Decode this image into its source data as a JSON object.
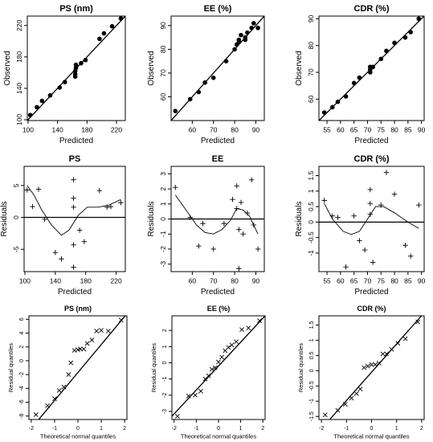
{
  "chart_data": [
    {
      "type": "scatter",
      "title": "PS (nm)",
      "xlabel": "Predicted",
      "ylabel": "Observed",
      "xlim": [
        99,
        232
      ],
      "ylim": [
        99,
        232
      ],
      "xticks": [
        100,
        140,
        180,
        220
      ],
      "yticks": [
        100,
        140,
        180,
        220
      ],
      "reference_line": "identity",
      "marker": "dot",
      "points": [
        [
          103,
          106
        ],
        [
          112,
          116
        ],
        [
          119,
          124
        ],
        [
          130,
          131
        ],
        [
          143,
          141
        ],
        [
          150,
          148
        ],
        [
          164,
          155
        ],
        [
          164,
          158
        ],
        [
          164,
          162
        ],
        [
          165,
          166
        ],
        [
          165,
          170
        ],
        [
          172,
          172
        ],
        [
          178,
          176
        ],
        [
          197,
          203
        ],
        [
          203,
          210
        ],
        [
          214,
          219
        ],
        [
          226,
          229
        ]
      ]
    },
    {
      "type": "scatter",
      "title": "EE (%)",
      "xlabel": "Predicted",
      "ylabel": "Observed",
      "xlim": [
        50,
        94
      ],
      "ylim": [
        50,
        94
      ],
      "xticks": [
        60,
        70,
        80,
        90
      ],
      "yticks": [
        60,
        70,
        80,
        90
      ],
      "reference_line": "identity",
      "marker": "dot",
      "points": [
        [
          52,
          54
        ],
        [
          59,
          59
        ],
        [
          63,
          62
        ],
        [
          66,
          66
        ],
        [
          70,
          68
        ],
        [
          76,
          75
        ],
        [
          80,
          80
        ],
        [
          81,
          82
        ],
        [
          82,
          84
        ],
        [
          82,
          83
        ],
        [
          83,
          86
        ],
        [
          85,
          84
        ],
        [
          85,
          85
        ],
        [
          86,
          87
        ],
        [
          88,
          89
        ],
        [
          89,
          91
        ],
        [
          91,
          89
        ]
      ]
    },
    {
      "type": "scatter",
      "title": "CDR (%)",
      "xlabel": "Predicted",
      "ylabel": "Observed",
      "xlim": [
        52,
        91
      ],
      "ylim": [
        52,
        91
      ],
      "xticks": [
        55,
        60,
        65,
        70,
        75,
        80,
        85,
        90
      ],
      "yticks": [
        60,
        70,
        80,
        90
      ],
      "reference_line": "identity",
      "marker": "dot",
      "points": [
        [
          54,
          55
        ],
        [
          57,
          57
        ],
        [
          59,
          59
        ],
        [
          62,
          61
        ],
        [
          65,
          66
        ],
        [
          67,
          68
        ],
        [
          71,
          70
        ],
        [
          71,
          72
        ],
        [
          71,
          71
        ],
        [
          71,
          72
        ],
        [
          72,
          72
        ],
        [
          75,
          75
        ],
        [
          77,
          78
        ],
        [
          80,
          81
        ],
        [
          84,
          83
        ],
        [
          86,
          85
        ],
        [
          89,
          90
        ]
      ]
    },
    {
      "type": "scatter",
      "title": "PS",
      "xlabel": "Predicted",
      "ylabel": "Residuals",
      "xlim": [
        99,
        232
      ],
      "ylim": [
        -8.5,
        8
      ],
      "xticks": [
        100,
        140,
        180,
        220
      ],
      "yticks": [
        -5,
        0,
        5
      ],
      "reference_line": "y=0",
      "marker": "plus",
      "points": [
        [
          103,
          4.3
        ],
        [
          110,
          1.7
        ],
        [
          118,
          4.4
        ],
        [
          126,
          -0.3
        ],
        [
          140,
          -5.5
        ],
        [
          148,
          -6.5
        ],
        [
          164,
          -7.8
        ],
        [
          164,
          -4.3
        ],
        [
          164,
          1.6
        ],
        [
          164,
          3
        ],
        [
          164,
          5.9
        ],
        [
          172,
          -2
        ],
        [
          178,
          -3.8
        ],
        [
          198,
          4.2
        ],
        [
          208,
          1.6
        ],
        [
          213,
          1.7
        ],
        [
          226,
          2.3
        ]
      ],
      "smooth": [
        [
          103,
          5
        ],
        [
          112,
          3.5
        ],
        [
          122,
          1.2
        ],
        [
          135,
          -1.2
        ],
        [
          148,
          -2.8
        ],
        [
          158,
          -2
        ],
        [
          170,
          0.3
        ],
        [
          182,
          1.6
        ],
        [
          196,
          1.6
        ],
        [
          210,
          1.9
        ],
        [
          226,
          2.8
        ]
      ]
    },
    {
      "type": "scatter",
      "title": "EE",
      "xlabel": "Predicted",
      "ylabel": "Residuals",
      "xlim": [
        50,
        94
      ],
      "ylim": [
        -3.5,
        3.5
      ],
      "xticks": [
        60,
        70,
        80,
        90
      ],
      "yticks": [
        -3,
        -2,
        -1,
        0,
        1,
        2,
        3
      ],
      "reference_line": "y=0",
      "marker": "plus",
      "points": [
        [
          52,
          2.1
        ],
        [
          59,
          0.1
        ],
        [
          63,
          -1.8
        ],
        [
          65,
          -0.3
        ],
        [
          70,
          -2
        ],
        [
          75,
          -0.3
        ],
        [
          79,
          1.3
        ],
        [
          81,
          0.7
        ],
        [
          81,
          2.2
        ],
        [
          82,
          -3.3
        ],
        [
          82,
          -0.7
        ],
        [
          83,
          1.1
        ],
        [
          84,
          -1
        ],
        [
          86,
          0.4
        ],
        [
          88,
          2.6
        ],
        [
          89,
          -0.4
        ],
        [
          91,
          -2
        ]
      ],
      "smooth": [
        [
          52,
          1.6
        ],
        [
          57,
          0.6
        ],
        [
          62,
          -0.4
        ],
        [
          66,
          -0.9
        ],
        [
          70,
          -1
        ],
        [
          74,
          -0.7
        ],
        [
          78,
          -0.1
        ],
        [
          81,
          0.7
        ],
        [
          84,
          0.6
        ],
        [
          87,
          0.2
        ],
        [
          91,
          -1
        ]
      ]
    },
    {
      "type": "scatter",
      "title": "CDR (%)",
      "xlabel": "Predicted",
      "ylabel": "Residuals",
      "xlim": [
        52,
        91
      ],
      "ylim": [
        -1.6,
        1.8
      ],
      "xticks": [
        55,
        60,
        65,
        70,
        75,
        80,
        85,
        90
      ],
      "yticks": [
        -1,
        -0.5,
        0,
        0.5,
        1,
        1.5
      ],
      "reference_line": "y=0",
      "marker": "plus",
      "points": [
        [
          54,
          0.7
        ],
        [
          57,
          0.2
        ],
        [
          59,
          0.15
        ],
        [
          62,
          -1.45
        ],
        [
          65,
          0.2
        ],
        [
          67,
          -0.6
        ],
        [
          69,
          -0.9
        ],
        [
          71,
          1.05
        ],
        [
          71,
          0.6
        ],
        [
          71,
          0.25
        ],
        [
          72,
          -1.3
        ],
        [
          75,
          0.55
        ],
        [
          77,
          1.6
        ],
        [
          80,
          0.9
        ],
        [
          84,
          -0.75
        ],
        [
          86,
          -1.1
        ],
        [
          89,
          0.55
        ]
      ],
      "smooth": [
        [
          54,
          0.6
        ],
        [
          57,
          0.1
        ],
        [
          61,
          -0.3
        ],
        [
          64,
          -0.4
        ],
        [
          67,
          -0.3
        ],
        [
          70,
          0.1
        ],
        [
          73,
          0.5
        ],
        [
          76,
          0.5
        ],
        [
          80,
          0.3
        ],
        [
          85,
          0
        ],
        [
          89,
          -0.2
        ]
      ]
    },
    {
      "type": "scatter",
      "title": "PS (nm)",
      "xlabel": "Theoretical normal quantiles",
      "ylabel": "Residual quantiles",
      "xlim": [
        -2.1,
        2.1
      ],
      "ylim": [
        -8.5,
        6.5
      ],
      "xticks": [
        -2,
        -1,
        0,
        1,
        2
      ],
      "yticks": [
        -8,
        -6,
        -4,
        -2,
        0,
        2,
        4,
        6
      ],
      "reference_line": [
        [
          -2.1,
          -10.2
        ],
        [
          2.1,
          6.8
        ]
      ],
      "marker": "cross",
      "points": [
        [
          -1.8,
          -7.8
        ],
        [
          -1.3,
          -6.5
        ],
        [
          -1,
          -5.5
        ],
        [
          -0.8,
          -4.3
        ],
        [
          -0.6,
          -3.8
        ],
        [
          -0.4,
          -2
        ],
        [
          -0.3,
          -0.3
        ],
        [
          -0.15,
          1.5
        ],
        [
          0,
          1.6
        ],
        [
          0.1,
          1.7
        ],
        [
          0.25,
          1.7
        ],
        [
          0.4,
          2.5
        ],
        [
          0.6,
          3
        ],
        [
          0.8,
          4.3
        ],
        [
          1,
          4.4
        ],
        [
          1.3,
          4.3
        ],
        [
          1.85,
          5.9
        ]
      ]
    },
    {
      "type": "scatter",
      "title": "EE (%)",
      "xlabel": "Theoretical normal quantiles",
      "ylabel": "Residual quantiles",
      "xlim": [
        -2.1,
        2.1
      ],
      "ylim": [
        -3.5,
        2.9
      ],
      "xticks": [
        -2,
        -1,
        0,
        1,
        2
      ],
      "yticks": [
        -3,
        -2,
        -1,
        0,
        1,
        2
      ],
      "reference_line": [
        [
          -2.1,
          -3.3
        ],
        [
          2.1,
          2.9
        ]
      ],
      "marker": "cross",
      "points": [
        [
          -1.85,
          -3.3
        ],
        [
          -1.35,
          -2.05
        ],
        [
          -1.05,
          -2
        ],
        [
          -0.8,
          -1.75
        ],
        [
          -0.6,
          -1
        ],
        [
          -0.45,
          -0.8
        ],
        [
          -0.3,
          -0.4
        ],
        [
          -0.15,
          -0.3
        ],
        [
          0,
          0.05
        ],
        [
          0.15,
          0.35
        ],
        [
          0.3,
          0.75
        ],
        [
          0.45,
          0.95
        ],
        [
          0.6,
          1.1
        ],
        [
          0.8,
          1.3
        ],
        [
          1.05,
          2.05
        ],
        [
          1.35,
          2.15
        ],
        [
          1.85,
          2.6
        ]
      ]
    },
    {
      "type": "scatter",
      "title": "CDR (%)",
      "xlabel": "Theoretical normal quantiles",
      "ylabel": "Residual quantiles",
      "xlim": [
        -2.1,
        2.1
      ],
      "ylim": [
        -1.6,
        1.8
      ],
      "xticks": [
        -2,
        -1,
        0,
        1,
        2
      ],
      "yticks": [
        -1.5,
        -1,
        -0.5,
        0,
        0.5,
        1,
        1.5
      ],
      "reference_line": [
        [
          -2.1,
          -2
        ],
        [
          2.1,
          1.9
        ]
      ],
      "marker": "cross",
      "points": [
        [
          -1.85,
          -1.45
        ],
        [
          -1.35,
          -1.3
        ],
        [
          -1.05,
          -1.1
        ],
        [
          -0.8,
          -0.9
        ],
        [
          -0.6,
          -0.75
        ],
        [
          -0.45,
          -0.6
        ],
        [
          -0.3,
          0.1
        ],
        [
          -0.15,
          0.15
        ],
        [
          0,
          0.2
        ],
        [
          0.15,
          0.2
        ],
        [
          0.3,
          0.25
        ],
        [
          0.45,
          0.55
        ],
        [
          0.6,
          0.55
        ],
        [
          0.8,
          0.7
        ],
        [
          1.05,
          0.9
        ],
        [
          1.35,
          1.05
        ],
        [
          1.85,
          1.6
        ]
      ]
    }
  ]
}
